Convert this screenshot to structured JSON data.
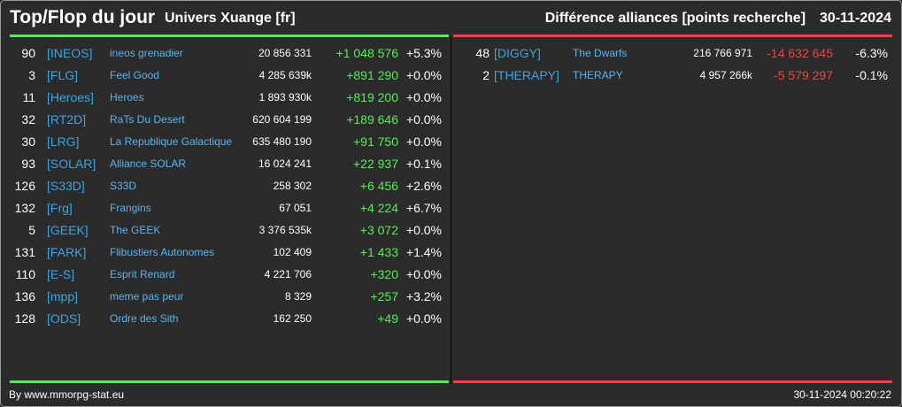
{
  "header": {
    "title": "Top/Flop du jour",
    "universe": "Univers Xuange [fr]",
    "category": "Différence alliances [points recherche]",
    "date": "30-11-2024"
  },
  "colors": {
    "positive": "#55ee55",
    "negative": "#ee4444",
    "tag": "#3fa3e0",
    "name": "#5ab4f0"
  },
  "top": [
    {
      "rank": "90",
      "tag": "[INEOS]",
      "name": "ineos grenadier",
      "points": "20 856 331",
      "diff": "+1 048 576",
      "pct": "+5.3%"
    },
    {
      "rank": "3",
      "tag": "[FLG]",
      "name": "Feel Good",
      "points": "4 285 639k",
      "diff": "+891 290",
      "pct": "+0.0%"
    },
    {
      "rank": "11",
      "tag": "[Heroes]",
      "name": "Heroes",
      "points": "1 893 930k",
      "diff": "+819 200",
      "pct": "+0.0%"
    },
    {
      "rank": "32",
      "tag": "[RT2D]",
      "name": "RaTs Du Desert",
      "points": "620 604 199",
      "diff": "+189 646",
      "pct": "+0.0%"
    },
    {
      "rank": "30",
      "tag": "[LRG]",
      "name": "La Republique Galactique",
      "points": "635 480 190",
      "diff": "+91 750",
      "pct": "+0.0%"
    },
    {
      "rank": "93",
      "tag": "[SOLAR]",
      "name": "Alliance SOLAR",
      "points": "16 024 241",
      "diff": "+22 937",
      "pct": "+0.1%"
    },
    {
      "rank": "126",
      "tag": "[S33D]",
      "name": "S33D",
      "points": "258 302",
      "diff": "+6 456",
      "pct": "+2.6%"
    },
    {
      "rank": "132",
      "tag": "[Frg]",
      "name": "Frangins",
      "points": "67 051",
      "diff": "+4 224",
      "pct": "+6.7%"
    },
    {
      "rank": "5",
      "tag": "[GEEK]",
      "name": "The GEEK",
      "points": "3 376 535k",
      "diff": "+3 072",
      "pct": "+0.0%"
    },
    {
      "rank": "131",
      "tag": "[FARK]",
      "name": "Flibustiers Autonomes",
      "points": "102 409",
      "diff": "+1 433",
      "pct": "+1.4%"
    },
    {
      "rank": "110",
      "tag": "[E-S]",
      "name": "Esprit Renard",
      "points": "4 221 706",
      "diff": "+320",
      "pct": "+0.0%"
    },
    {
      "rank": "136",
      "tag": "[mpp]",
      "name": "meme pas peur",
      "points": "8 329",
      "diff": "+257",
      "pct": "+3.2%"
    },
    {
      "rank": "128",
      "tag": "[ODS]",
      "name": "Ordre des Sith",
      "points": "162 250",
      "diff": "+49",
      "pct": "+0.0%"
    }
  ],
  "flop": [
    {
      "rank": "48",
      "tag": "[DIGGY]",
      "name": "The Dwarfs",
      "points": "216 766 971",
      "diff": "-14 632 645",
      "pct": "-6.3%"
    },
    {
      "rank": "2",
      "tag": "[THERAPY]",
      "name": "THERAPY",
      "points": "4 957 266k",
      "diff": "-5 579 297",
      "pct": "-0.1%"
    }
  ],
  "footer": {
    "source": "By www.mmorpg-stat.eu",
    "timestamp": "30-11-2024 00:20:22"
  }
}
